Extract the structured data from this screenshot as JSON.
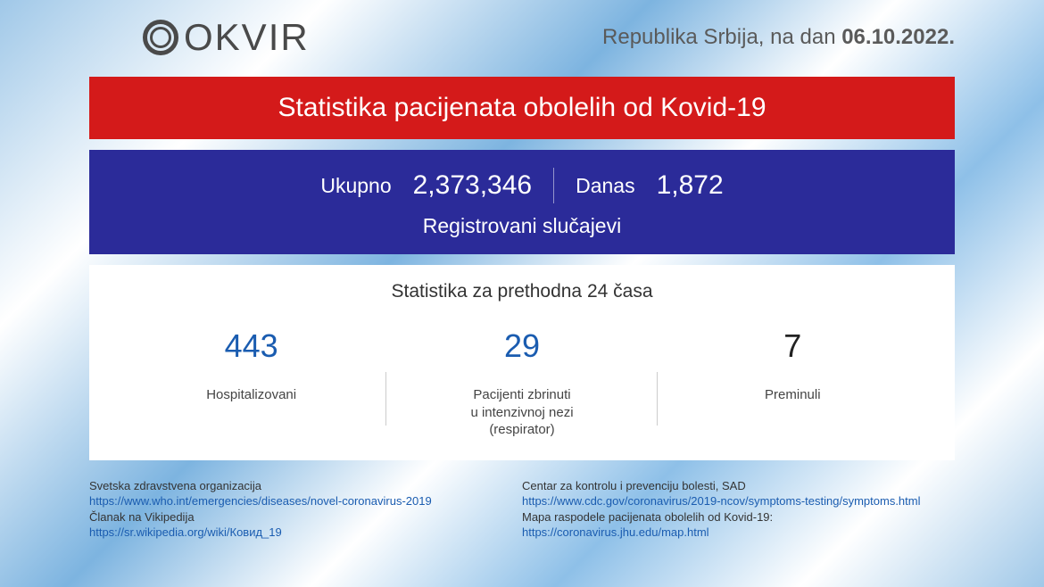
{
  "brand": {
    "name": "OKVIR",
    "logo_color": "#4a4a4a"
  },
  "header": {
    "date_prefix": "Republika Srbija, na dan ",
    "date_value": "06.10.2022."
  },
  "title_banner": {
    "text": "Statistika pacijenata obolelih od Kovid-19",
    "background_color": "#d41a1a",
    "text_color": "#ffffff",
    "fontsize": 30
  },
  "totals_banner": {
    "background_color": "#2b2b99",
    "text_color": "#ffffff",
    "total_label": "Ukupno",
    "total_value": "2,373,346",
    "today_label": "Danas",
    "today_value": "1,872",
    "subtitle": "Registrovani slučajevi",
    "label_fontsize": 23,
    "value_fontsize": 30
  },
  "stats_panel": {
    "background_color": "#ffffff",
    "title": "Statistika za prethodna 24 časa",
    "title_fontsize": 21,
    "value_fontsize": 36,
    "label_fontsize": 15,
    "columns": [
      {
        "value": "443",
        "value_color": "#1a5cb0",
        "label": "Hospitalizovani"
      },
      {
        "value": "29",
        "value_color": "#1a5cb0",
        "label": "Pacijenti zbrinuti\nu intenzivnoj nezi\n(respirator)"
      },
      {
        "value": "7",
        "value_color": "#222222",
        "label": "Preminuli"
      }
    ]
  },
  "footer": {
    "left": [
      {
        "label": "Svetska zdravstvena organizacija",
        "link": "https://www.who.int/emergencies/diseases/novel-coronavirus-2019"
      },
      {
        "label": "Članak na Vikipedija",
        "link": "https://sr.wikipedia.org/wiki/Ковид_19"
      }
    ],
    "right": [
      {
        "label": "Centar za kontrolu i prevenciju bolesti, SAD",
        "link": "https://www.cdc.gov/coronavirus/2019-ncov/symptoms-testing/symptoms.html"
      },
      {
        "label": "Mapa raspodele pacijenata obolelih od Kovid-19:",
        "link": "https://coronavirus.jhu.edu/map.html"
      }
    ],
    "label_color": "#333333",
    "link_color": "#1a5cb0",
    "fontsize": 13
  },
  "background": {
    "colors": [
      "#a0c8e8",
      "#ffffff",
      "#7db4e0"
    ]
  }
}
